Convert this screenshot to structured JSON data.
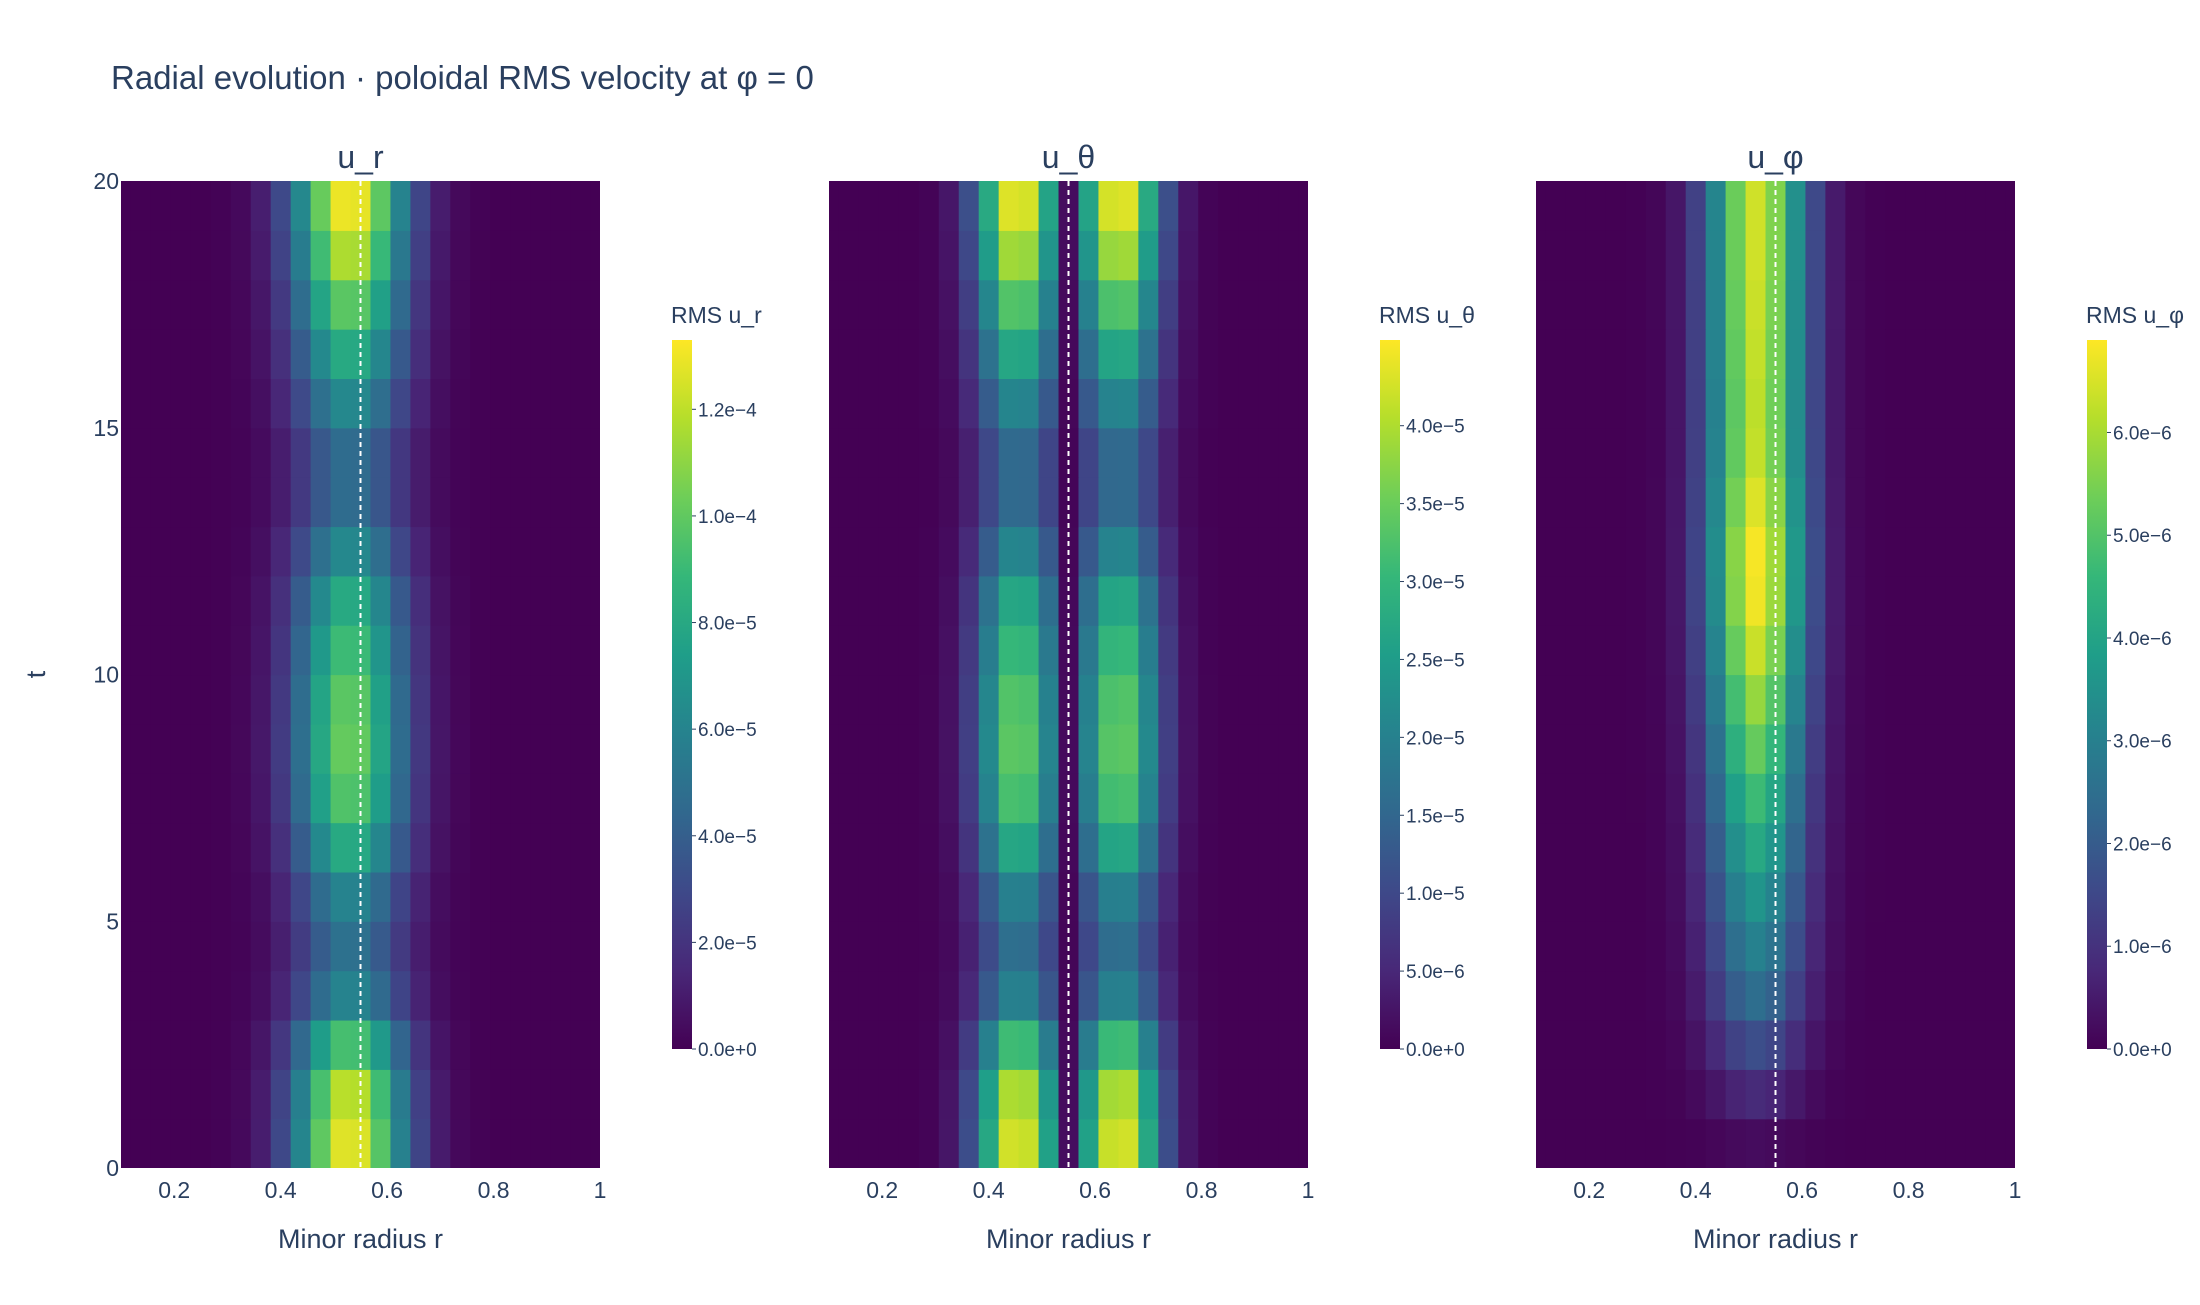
{
  "title": "Radial evolution · poloidal RMS velocity at φ = 0",
  "chart_data": {
    "type": "heatmap",
    "colorscale": [
      "#440154",
      "#482878",
      "#3e4989",
      "#31688e",
      "#26828e",
      "#1f9e89",
      "#35b779",
      "#6ece58",
      "#b5de2b",
      "#fde725"
    ],
    "marker_line_color": "#ffffff",
    "marker_line_value": 0.55,
    "shared_y": {
      "label": "t",
      "range": [
        0,
        20
      ],
      "ticks": [
        0,
        5,
        10,
        15,
        20
      ],
      "tick_labels": [
        "0",
        "5",
        "10",
        "15",
        "20"
      ],
      "values": [
        0.5,
        1.5,
        2.5,
        3.5,
        4.5,
        5.5,
        6.5,
        7.5,
        8.5,
        9.5,
        10.5,
        11.5,
        12.5,
        13.5,
        14.5,
        15.5,
        16.5,
        17.5,
        18.5,
        19.5
      ]
    },
    "shared_x": {
      "label": "Minor radius r",
      "range": [
        0.1,
        1.0
      ],
      "ticks": [
        0.2,
        0.4,
        0.6,
        0.8,
        1.0
      ],
      "tick_labels": [
        "0.2",
        "0.4",
        "0.6",
        "0.8",
        "1"
      ],
      "values": [
        0.1,
        0.1375,
        0.175,
        0.2125,
        0.25,
        0.2875,
        0.325,
        0.3625,
        0.4,
        0.4375,
        0.475,
        0.5125,
        0.55,
        0.5875,
        0.625,
        0.6625,
        0.7,
        0.7375,
        0.775,
        0.8125,
        0.85,
        0.8875,
        0.925,
        0.9625,
        1.0
      ]
    },
    "panels": [
      {
        "title": "u_r",
        "colorbar_title": "RMS u_r",
        "zmin": 0,
        "zmax": 0.000133,
        "colorbar_ticks": [
          0,
          2e-05,
          4e-05,
          6e-05,
          8e-05,
          0.0001,
          0.00012
        ],
        "colorbar_tick_labels": [
          "0.0e+0",
          "2.0e−5",
          "4.0e−5",
          "6.0e−5",
          "8.0e−5",
          "1.0e−4",
          "1.2e−4"
        ],
        "model": {
          "kind": "single",
          "center": 0.53,
          "width": 0.075,
          "temporal": [
            0.98,
            0.92,
            0.72,
            0.46,
            0.38,
            0.46,
            0.62,
            0.74,
            0.78,
            0.76,
            0.7,
            0.62,
            0.48,
            0.36,
            0.36,
            0.48,
            0.62,
            0.76,
            0.9,
            1.0
          ]
        }
      },
      {
        "title": "u_θ",
        "colorbar_title": "RMS u_θ",
        "zmin": 0,
        "zmax": 4.55e-05,
        "colorbar_ticks": [
          0,
          5e-06,
          1e-05,
          1.5e-05,
          2e-05,
          2.5e-05,
          3e-05,
          3.5e-05,
          4e-05
        ],
        "colorbar_tick_labels": [
          "0.0e+0",
          "5.0e−6",
          "1.0e−5",
          "1.5e−5",
          "2.0e−5",
          "2.5e−5",
          "3.0e−5",
          "3.5e−5",
          "4.0e−5"
        ],
        "model": {
          "kind": "double",
          "center": 0.55,
          "offset": 0.095,
          "width": 0.055,
          "temporal": [
            0.98,
            0.92,
            0.72,
            0.46,
            0.38,
            0.46,
            0.62,
            0.74,
            0.78,
            0.76,
            0.7,
            0.62,
            0.48,
            0.36,
            0.36,
            0.48,
            0.62,
            0.76,
            0.9,
            1.0
          ]
        }
      },
      {
        "title": "u_φ",
        "colorbar_title": "RMS u_φ",
        "zmin": 0,
        "zmax": 6.9e-06,
        "colorbar_ticks": [
          0,
          1e-06,
          2e-06,
          3e-06,
          4e-06,
          5e-06,
          6e-06
        ],
        "colorbar_tick_labels": [
          "0.0e+0",
          "1.0e−6",
          "2.0e−6",
          "3.0e−6",
          "4.0e−6",
          "5.0e−6",
          "6.0e−6"
        ],
        "model": {
          "kind": "single",
          "center": 0.515,
          "width": 0.065,
          "temporal": [
            0.03,
            0.12,
            0.24,
            0.36,
            0.44,
            0.52,
            0.6,
            0.68,
            0.76,
            0.84,
            0.92,
            0.98,
            0.99,
            0.95,
            0.91,
            0.9,
            0.91,
            0.92,
            0.93,
            0.93
          ]
        }
      }
    ]
  }
}
